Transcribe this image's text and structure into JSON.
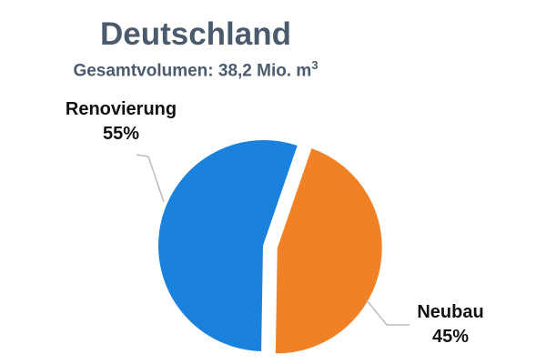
{
  "title": "Deutschland",
  "subtitle": {
    "text": "Gesamtvolumen: 38,2 Mio. m",
    "unit_superscript": "3"
  },
  "chart_data": {
    "type": "pie",
    "title": "Deutschland",
    "subtitle": "Gesamtvolumen: 38,2 Mio. m³",
    "slices": [
      {
        "label": "Renovierung",
        "value": 55,
        "value_label": "55%",
        "color": "#1a82dc",
        "exploded": false
      },
      {
        "label": "Neubau",
        "value": 45,
        "value_label": "45%",
        "color": "#f08125",
        "exploded": true
      }
    ],
    "legend": "none",
    "data_labels": "outside with leader lines"
  }
}
